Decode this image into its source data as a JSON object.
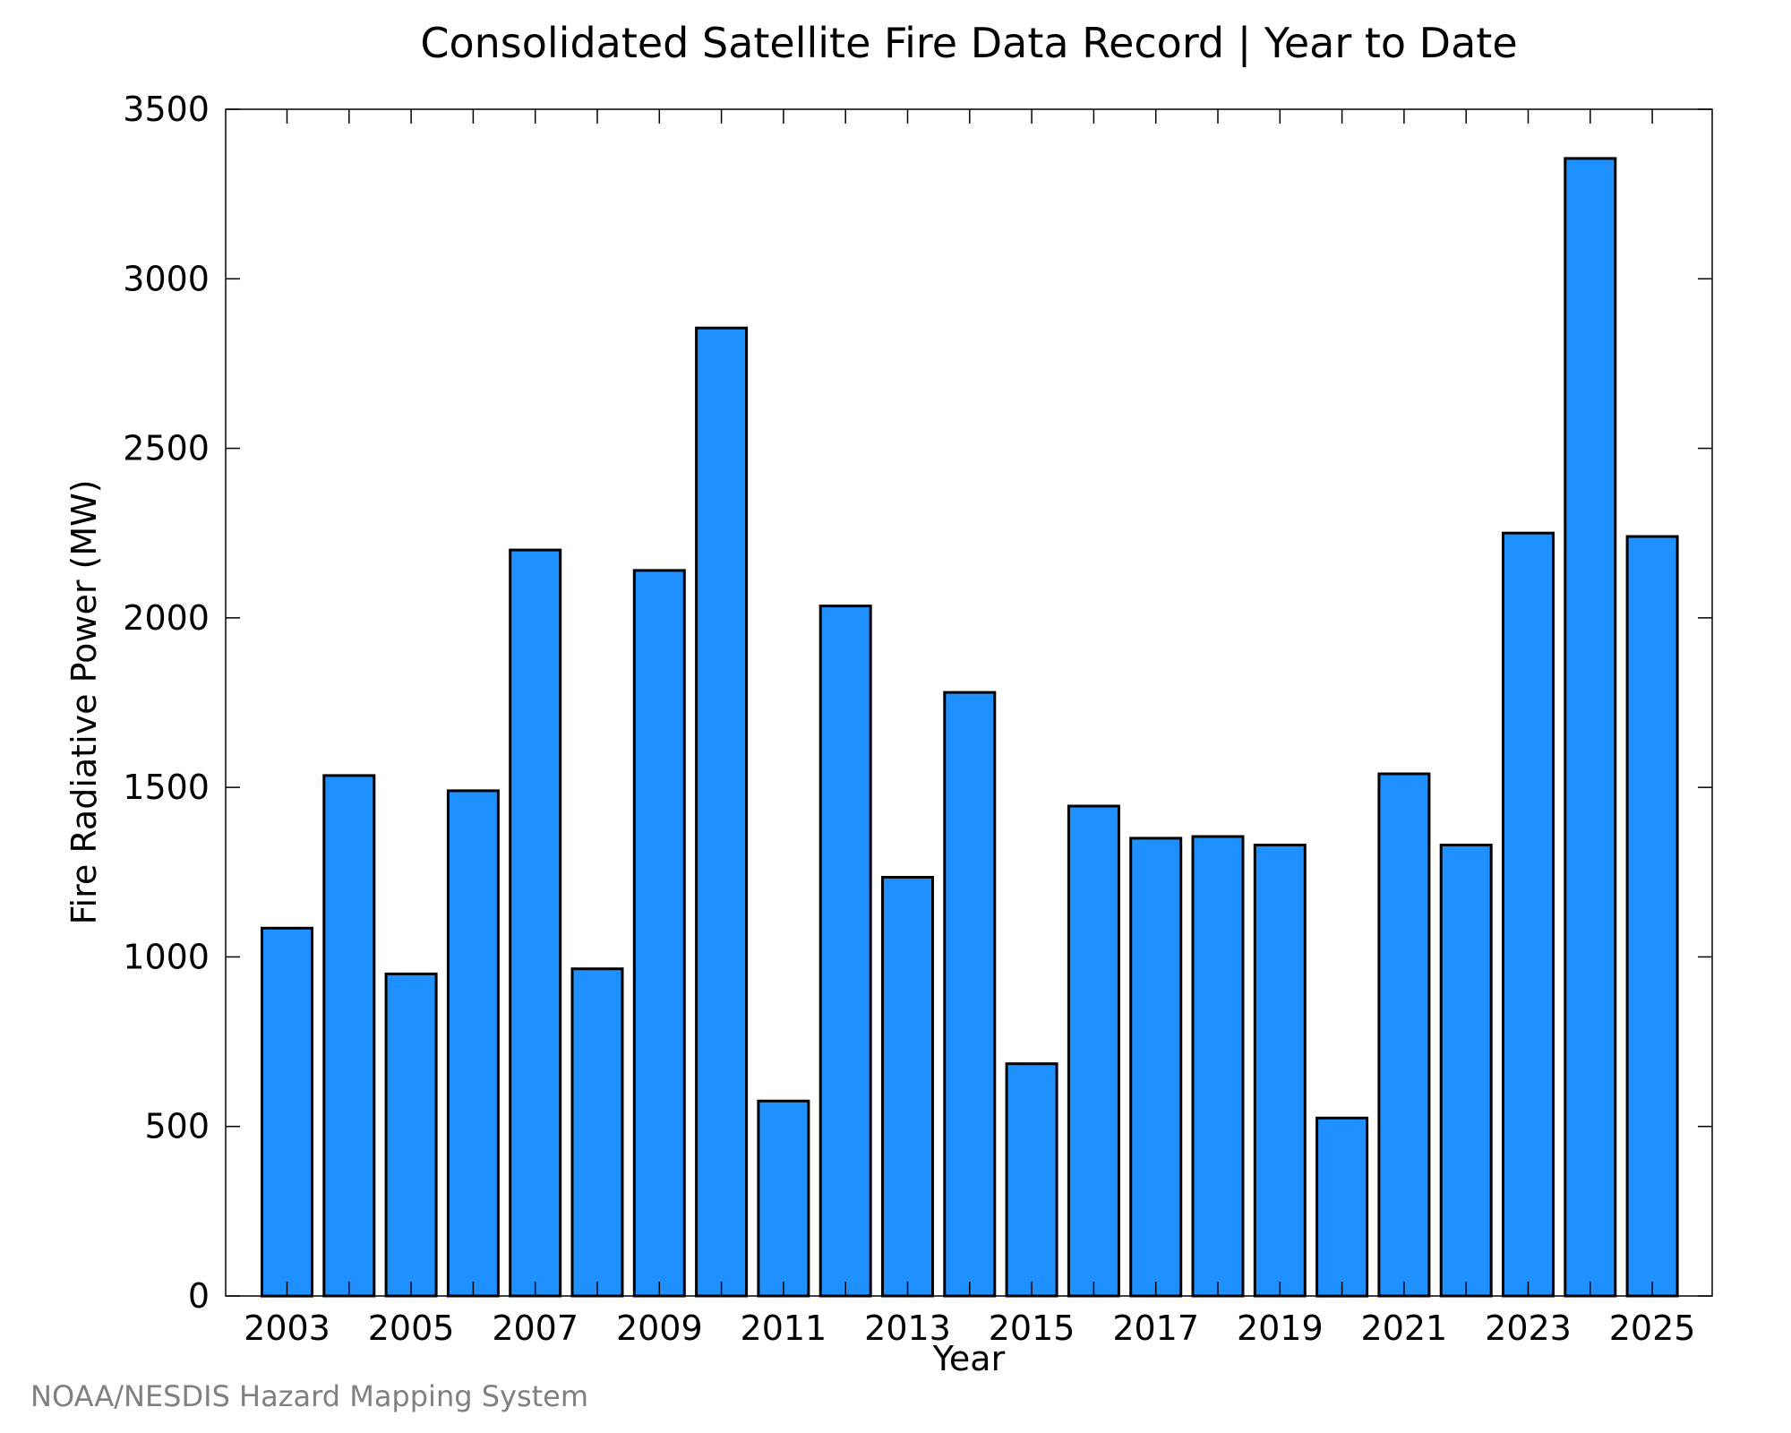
{
  "chart_data": {
    "type": "bar",
    "title": "Consolidated Satellite Fire Data Record | Year to Date",
    "xlabel": "Year",
    "ylabel": "Fire Radiative Power (MW)",
    "source": "NOAA/NESDIS Hazard Mapping System",
    "categories": [
      "2003",
      "2004",
      "2005",
      "2006",
      "2007",
      "2008",
      "2009",
      "2010",
      "2011",
      "2012",
      "2013",
      "2014",
      "2015",
      "2016",
      "2017",
      "2018",
      "2019",
      "2020",
      "2021",
      "2022",
      "2023",
      "2024",
      "2025"
    ],
    "values": [
      1085,
      1535,
      950,
      1490,
      2200,
      965,
      2140,
      2855,
      575,
      2035,
      1235,
      1780,
      685,
      1445,
      1350,
      1355,
      1330,
      525,
      1540,
      1330,
      2250,
      3355,
      2240
    ],
    "xticks": [
      "2003",
      "2005",
      "2007",
      "2009",
      "2011",
      "2013",
      "2015",
      "2017",
      "2019",
      "2021",
      "2023",
      "2025"
    ],
    "yticks": [
      0,
      500,
      1000,
      1500,
      2000,
      2500,
      3000,
      3500
    ],
    "ylim": [
      0,
      3500
    ],
    "grid": false,
    "bar_color": "#1E90FF",
    "edge_color": "#000000"
  }
}
